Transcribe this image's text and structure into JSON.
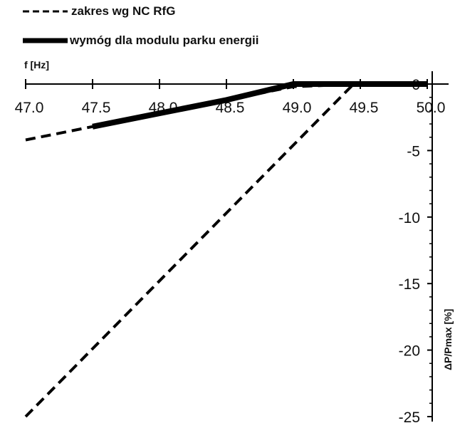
{
  "chart_data": {
    "type": "line",
    "xlabel": "f [Hz]",
    "ylabel": "ΔP/Pmax [%]",
    "xlim": [
      47.0,
      50.0
    ],
    "ylim": [
      -25,
      0
    ],
    "x_ticks": [
      "47.0",
      "47.5",
      "48.0",
      "48.5",
      "49.0",
      "49.5",
      "50.0"
    ],
    "y_ticks": [
      "0",
      "-5",
      "-10",
      "-15",
      "-20",
      "-25"
    ],
    "grid": false,
    "legend_position": "top-left",
    "series": [
      {
        "name": "zakres wg NC RfG",
        "style": "dashed",
        "color": "#000000",
        "points": [
          {
            "x": 47.0,
            "y": -4.2
          },
          {
            "x": 47.5,
            "y": -3.2
          },
          {
            "x": 48.0,
            "y": -2.2
          },
          {
            "x": 48.5,
            "y": -1.2
          },
          {
            "x": 49.0,
            "y": -0.2
          },
          {
            "x": 49.5,
            "y": 0.0
          },
          {
            "x": 50.0,
            "y": 0.0
          }
        ]
      },
      {
        "name": "",
        "style": "dashed",
        "color": "#000000",
        "points": [
          {
            "x": 47.0,
            "y": -25.0
          },
          {
            "x": 49.45,
            "y": 0.0
          }
        ]
      },
      {
        "name": "wymóg dla modulu parku energii",
        "style": "solid",
        "color": "#000000",
        "points": [
          {
            "x": 47.5,
            "y": -3.2
          },
          {
            "x": 48.0,
            "y": -2.2
          },
          {
            "x": 48.5,
            "y": -1.2
          },
          {
            "x": 49.0,
            "y": 0.0
          },
          {
            "x": 50.0,
            "y": 0.0
          }
        ]
      }
    ]
  }
}
